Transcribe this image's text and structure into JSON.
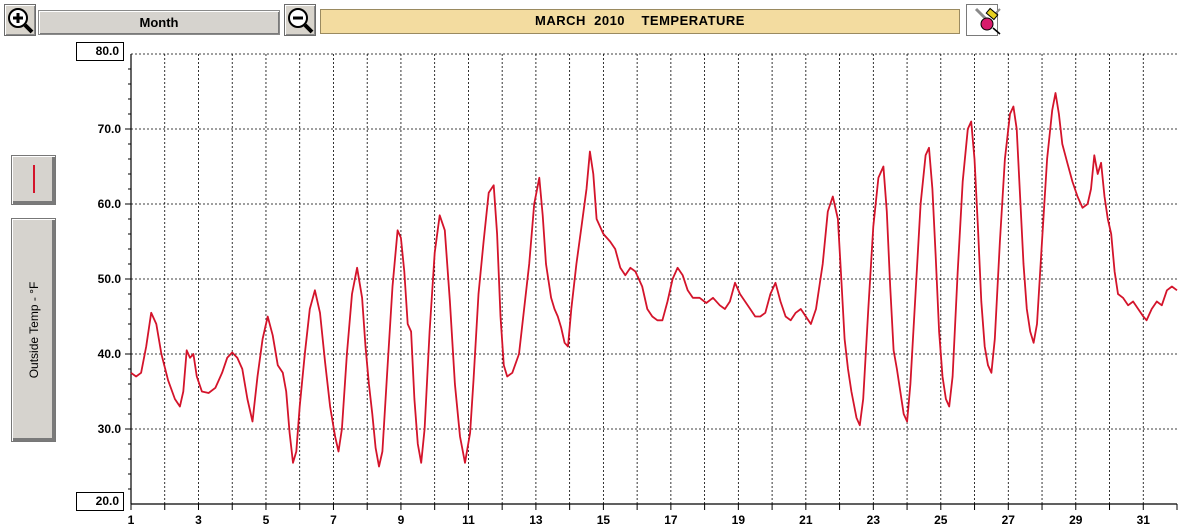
{
  "toolbar": {
    "zoom_in_icon": "zoom-in-icon",
    "zoom_out_icon": "zoom-out-icon",
    "period_label": "Month",
    "title": "MARCH  2010    TEMPERATURE",
    "tool_icon": "paint-eraser-icon"
  },
  "legend": {
    "series_color": "#d4142b",
    "axis_label": "Outside Temp - °F"
  },
  "colors": {
    "series": "#d4142b",
    "title_bg": "#f3dca0",
    "grid": "#000000"
  },
  "chart_data": {
    "type": "line",
    "title": "MARCH  2010    TEMPERATURE",
    "ylabel": "Outside Temp - °F",
    "xlabel": "",
    "ylim": [
      20,
      80
    ],
    "xlim": [
      1,
      32
    ],
    "y_boxes": [
      "80.0",
      "20.0"
    ],
    "y_ticks": [
      {
        "value": 70,
        "label": "70.0"
      },
      {
        "value": 60,
        "label": "60.0"
      },
      {
        "value": 50,
        "label": "50.0"
      },
      {
        "value": 40,
        "label": "40.0"
      },
      {
        "value": 30,
        "label": "30.0"
      }
    ],
    "x_ticks": [
      {
        "value": 1,
        "label": "1"
      },
      {
        "value": 3,
        "label": "3"
      },
      {
        "value": 5,
        "label": "5"
      },
      {
        "value": 7,
        "label": "7"
      },
      {
        "value": 9,
        "label": "9"
      },
      {
        "value": 11,
        "label": "11"
      },
      {
        "value": 13,
        "label": "13"
      },
      {
        "value": 15,
        "label": "15"
      },
      {
        "value": 17,
        "label": "17"
      },
      {
        "value": 19,
        "label": "19"
      },
      {
        "value": 21,
        "label": "21"
      },
      {
        "value": 23,
        "label": "23"
      },
      {
        "value": 25,
        "label": "25"
      },
      {
        "value": 27,
        "label": "27"
      },
      {
        "value": 29,
        "label": "29"
      },
      {
        "value": 31,
        "label": "31"
      }
    ],
    "grid": true,
    "series": [
      {
        "color": "#d4142b",
        "points": [
          [
            1.0,
            37.5
          ],
          [
            1.15,
            37.0
          ],
          [
            1.3,
            37.5
          ],
          [
            1.45,
            41.0
          ],
          [
            1.6,
            45.5
          ],
          [
            1.75,
            44.0
          ],
          [
            1.9,
            40.0
          ],
          [
            2.1,
            36.5
          ],
          [
            2.3,
            34.0
          ],
          [
            2.45,
            33.0
          ],
          [
            2.55,
            35.0
          ],
          [
            2.65,
            40.5
          ],
          [
            2.75,
            39.5
          ],
          [
            2.85,
            40.0
          ],
          [
            2.95,
            37.0
          ],
          [
            3.1,
            35.0
          ],
          [
            3.3,
            34.8
          ],
          [
            3.5,
            35.5
          ],
          [
            3.7,
            37.5
          ],
          [
            3.85,
            39.5
          ],
          [
            4.0,
            40.2
          ],
          [
            4.15,
            39.5
          ],
          [
            4.3,
            38.0
          ],
          [
            4.45,
            34.0
          ],
          [
            4.6,
            31.0
          ],
          [
            4.75,
            37.0
          ],
          [
            4.9,
            42.0
          ],
          [
            5.05,
            45.0
          ],
          [
            5.2,
            42.5
          ],
          [
            5.35,
            38.5
          ],
          [
            5.5,
            37.5
          ],
          [
            5.6,
            35.0
          ],
          [
            5.7,
            29.5
          ],
          [
            5.8,
            25.5
          ],
          [
            5.9,
            27.0
          ],
          [
            6.0,
            33.0
          ],
          [
            6.15,
            40.0
          ],
          [
            6.3,
            46.0
          ],
          [
            6.45,
            48.5
          ],
          [
            6.6,
            45.5
          ],
          [
            6.75,
            39.0
          ],
          [
            6.9,
            33.0
          ],
          [
            7.05,
            29.0
          ],
          [
            7.15,
            27.0
          ],
          [
            7.25,
            30.0
          ],
          [
            7.4,
            40.0
          ],
          [
            7.55,
            48.0
          ],
          [
            7.7,
            51.5
          ],
          [
            7.85,
            47.5
          ],
          [
            7.95,
            41.0
          ],
          [
            8.05,
            36.0
          ],
          [
            8.15,
            32.0
          ],
          [
            8.25,
            27.5
          ],
          [
            8.35,
            25.0
          ],
          [
            8.45,
            27.0
          ],
          [
            8.6,
            38.0
          ],
          [
            8.75,
            49.0
          ],
          [
            8.9,
            56.5
          ],
          [
            9.0,
            55.5
          ],
          [
            9.1,
            51.0
          ],
          [
            9.2,
            44.0
          ],
          [
            9.3,
            43.0
          ],
          [
            9.4,
            34.0
          ],
          [
            9.5,
            28.0
          ],
          [
            9.6,
            25.5
          ],
          [
            9.7,
            30.0
          ],
          [
            9.85,
            43.0
          ],
          [
            10.0,
            53.5
          ],
          [
            10.15,
            58.5
          ],
          [
            10.3,
            56.5
          ],
          [
            10.45,
            47.0
          ],
          [
            10.6,
            36.0
          ],
          [
            10.75,
            29.0
          ],
          [
            10.9,
            25.5
          ],
          [
            11.05,
            29.5
          ],
          [
            11.15,
            36.5
          ],
          [
            11.3,
            48.0
          ],
          [
            11.45,
            55.0
          ],
          [
            11.6,
            61.5
          ],
          [
            11.75,
            62.5
          ],
          [
            11.85,
            56.0
          ],
          [
            11.95,
            45.0
          ],
          [
            12.05,
            38.5
          ],
          [
            12.15,
            37.0
          ],
          [
            12.3,
            37.5
          ],
          [
            12.5,
            40.0
          ],
          [
            12.65,
            46.0
          ],
          [
            12.8,
            52.0
          ],
          [
            12.95,
            60.0
          ],
          [
            13.1,
            63.5
          ],
          [
            13.2,
            58.5
          ],
          [
            13.3,
            52.0
          ],
          [
            13.45,
            47.5
          ],
          [
            13.55,
            46.0
          ],
          [
            13.65,
            45.0
          ],
          [
            13.75,
            43.5
          ],
          [
            13.85,
            41.5
          ],
          [
            13.95,
            41.0
          ],
          [
            14.05,
            46.0
          ],
          [
            14.2,
            52.0
          ],
          [
            14.35,
            57.0
          ],
          [
            14.5,
            62.0
          ],
          [
            14.6,
            67.0
          ],
          [
            14.7,
            64.0
          ],
          [
            14.8,
            58.0
          ],
          [
            15.0,
            56.0
          ],
          [
            15.2,
            55.0
          ],
          [
            15.35,
            54.0
          ],
          [
            15.5,
            51.5
          ],
          [
            15.65,
            50.5
          ],
          [
            15.8,
            51.5
          ],
          [
            15.95,
            51.0
          ],
          [
            16.05,
            50.0
          ],
          [
            16.15,
            49.0
          ],
          [
            16.3,
            46.0
          ],
          [
            16.45,
            45.0
          ],
          [
            16.6,
            44.5
          ],
          [
            16.75,
            44.5
          ],
          [
            16.9,
            47.0
          ],
          [
            17.05,
            50.0
          ],
          [
            17.2,
            51.5
          ],
          [
            17.35,
            50.5
          ],
          [
            17.5,
            48.5
          ],
          [
            17.65,
            47.5
          ],
          [
            17.85,
            47.5
          ],
          [
            18.05,
            46.8
          ],
          [
            18.25,
            47.5
          ],
          [
            18.45,
            46.5
          ],
          [
            18.6,
            46.0
          ],
          [
            18.75,
            47.0
          ],
          [
            18.9,
            49.5
          ],
          [
            19.05,
            48.0
          ],
          [
            19.2,
            47.0
          ],
          [
            19.35,
            46.0
          ],
          [
            19.5,
            45.0
          ],
          [
            19.65,
            45.0
          ],
          [
            19.8,
            45.5
          ],
          [
            19.95,
            48.0
          ],
          [
            20.1,
            49.5
          ],
          [
            20.25,
            47.0
          ],
          [
            20.4,
            45.0
          ],
          [
            20.55,
            44.5
          ],
          [
            20.7,
            45.5
          ],
          [
            20.85,
            46.0
          ],
          [
            21.0,
            45.0
          ],
          [
            21.15,
            44.0
          ],
          [
            21.3,
            46.0
          ],
          [
            21.5,
            52.0
          ],
          [
            21.65,
            59.0
          ],
          [
            21.8,
            61.0
          ],
          [
            21.95,
            58.0
          ],
          [
            22.05,
            50.0
          ],
          [
            22.15,
            42.0
          ],
          [
            22.25,
            38.0
          ],
          [
            22.35,
            35.0
          ],
          [
            22.5,
            31.5
          ],
          [
            22.6,
            30.5
          ],
          [
            22.7,
            34.0
          ],
          [
            22.85,
            46.0
          ],
          [
            23.0,
            57.0
          ],
          [
            23.15,
            63.5
          ],
          [
            23.3,
            65.0
          ],
          [
            23.4,
            59.0
          ],
          [
            23.5,
            49.0
          ],
          [
            23.6,
            40.5
          ],
          [
            23.7,
            38.0
          ],
          [
            23.8,
            35.0
          ],
          [
            23.9,
            32.0
          ],
          [
            24.0,
            31.0
          ],
          [
            24.1,
            36.0
          ],
          [
            24.25,
            48.0
          ],
          [
            24.4,
            60.0
          ],
          [
            24.55,
            66.5
          ],
          [
            24.65,
            67.5
          ],
          [
            24.75,
            62.0
          ],
          [
            24.85,
            53.0
          ],
          [
            24.95,
            43.0
          ],
          [
            25.05,
            37.0
          ],
          [
            25.15,
            34.0
          ],
          [
            25.25,
            33.0
          ],
          [
            25.35,
            37.0
          ],
          [
            25.5,
            51.0
          ],
          [
            25.65,
            63.0
          ],
          [
            25.8,
            70.0
          ],
          [
            25.9,
            71.0
          ],
          [
            26.0,
            66.0
          ],
          [
            26.1,
            57.0
          ],
          [
            26.2,
            47.0
          ],
          [
            26.3,
            41.0
          ],
          [
            26.4,
            38.5
          ],
          [
            26.5,
            37.5
          ],
          [
            26.6,
            42.0
          ],
          [
            26.75,
            55.0
          ],
          [
            26.9,
            66.0
          ],
          [
            27.05,
            72.0
          ],
          [
            27.15,
            73.0
          ],
          [
            27.25,
            70.0
          ],
          [
            27.35,
            61.0
          ],
          [
            27.45,
            52.0
          ],
          [
            27.55,
            46.0
          ],
          [
            27.65,
            43.0
          ],
          [
            27.75,
            41.5
          ],
          [
            27.85,
            44.0
          ],
          [
            28.0,
            55.0
          ],
          [
            28.15,
            66.0
          ],
          [
            28.3,
            72.5
          ],
          [
            28.4,
            74.8
          ],
          [
            28.5,
            72.0
          ],
          [
            28.6,
            68.0
          ],
          [
            28.75,
            65.5
          ],
          [
            28.9,
            63.0
          ],
          [
            29.05,
            61.0
          ],
          [
            29.2,
            59.5
          ],
          [
            29.35,
            60.0
          ],
          [
            29.45,
            62.0
          ],
          [
            29.55,
            66.5
          ],
          [
            29.65,
            64.0
          ],
          [
            29.75,
            65.5
          ],
          [
            29.85,
            61.0
          ],
          [
            29.95,
            58.0
          ],
          [
            30.05,
            56.0
          ],
          [
            30.15,
            51.0
          ],
          [
            30.25,
            48.0
          ],
          [
            30.4,
            47.5
          ],
          [
            30.55,
            46.5
          ],
          [
            30.7,
            47.0
          ],
          [
            30.85,
            46.0
          ],
          [
            31.0,
            45.0
          ],
          [
            31.1,
            44.5
          ],
          [
            31.25,
            46.0
          ],
          [
            31.4,
            47.0
          ],
          [
            31.55,
            46.5
          ],
          [
            31.7,
            48.5
          ],
          [
            31.85,
            49.0
          ],
          [
            32.0,
            48.5
          ]
        ]
      }
    ]
  }
}
